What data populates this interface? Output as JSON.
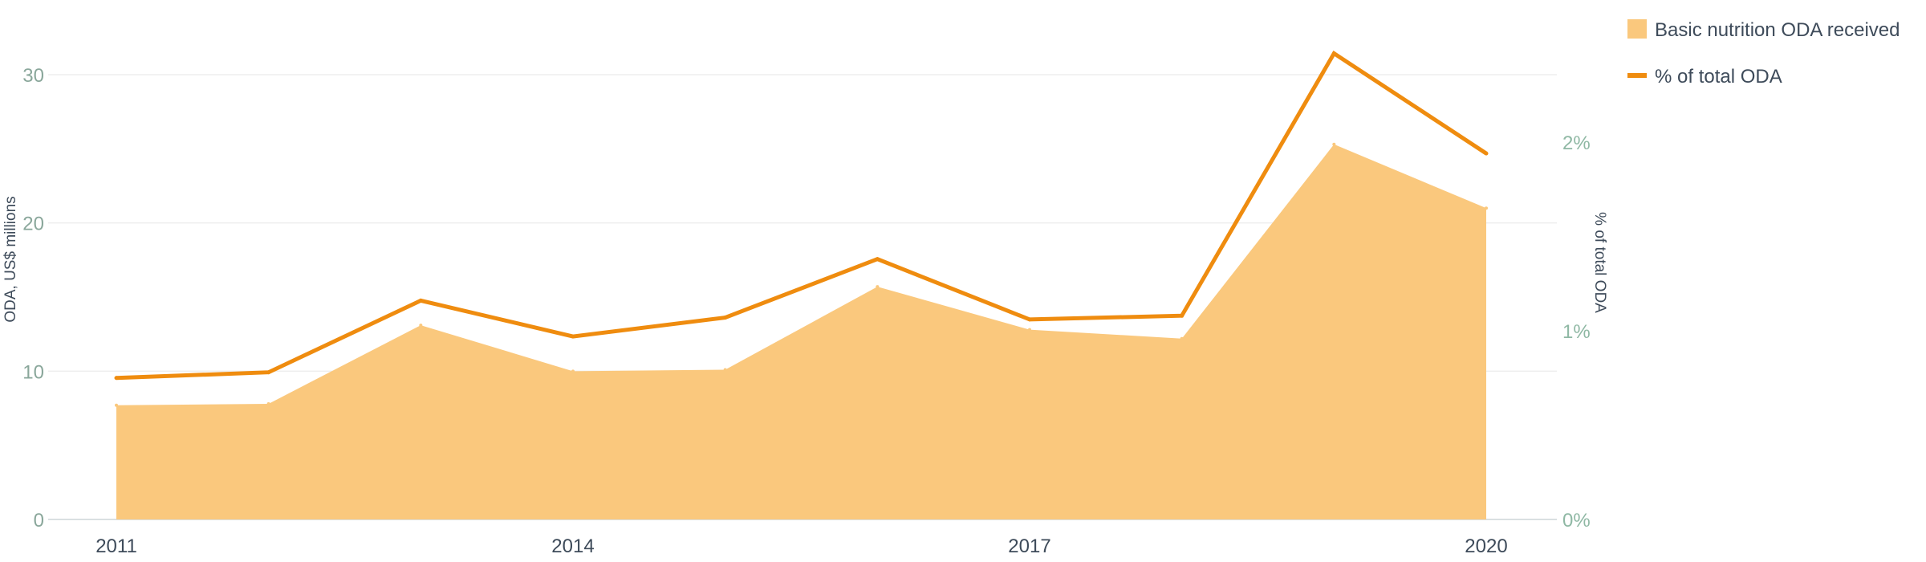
{
  "chart_data": {
    "type": "area",
    "x": [
      2011,
      2012,
      2013,
      2014,
      2015,
      2016,
      2017,
      2018,
      2019,
      2020
    ],
    "x_ticks": [
      "2011",
      "2014",
      "2017",
      "2020"
    ],
    "series": [
      {
        "name": "Basic nutrition ODA received",
        "type": "area",
        "axis": "left",
        "color": "#fac87d",
        "values": [
          7.7,
          7.8,
          13.1,
          10.0,
          10.1,
          15.7,
          12.8,
          12.2,
          25.3,
          21.0
        ]
      },
      {
        "name": "% of total ODA",
        "type": "line",
        "axis": "right",
        "color": "#ef8c0f",
        "values": [
          0.75,
          0.78,
          1.16,
          0.97,
          1.07,
          1.38,
          1.06,
          1.08,
          2.47,
          1.94
        ]
      }
    ],
    "y_left": {
      "label": "ODA, US$ millions",
      "ylim": [
        0,
        30
      ],
      "ticks": [
        "0",
        "10",
        "20",
        "30"
      ],
      "tick_values": [
        0,
        10,
        20,
        30
      ]
    },
    "y_right": {
      "label": "% of total ODA",
      "ylim": [
        0,
        2
      ],
      "ticks": [
        "0%",
        "1%",
        "2%"
      ],
      "tick_values": [
        0,
        1,
        2
      ]
    },
    "grid": true,
    "legend": "top-right"
  }
}
